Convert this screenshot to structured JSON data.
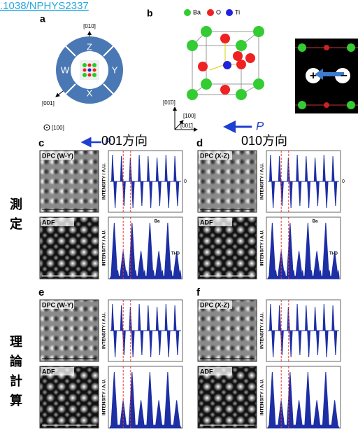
{
  "header": {
    "doi": ".1038/NPHYS2337"
  },
  "panel_a": {
    "label": "a",
    "axis_top": "[010]",
    "axis_left": "[001]",
    "axis_out": "[100]",
    "ring": [
      "Z",
      "Y",
      "X",
      "W"
    ],
    "polarization": "P"
  },
  "panel_b": {
    "label": "b",
    "legend": [
      "Ba",
      "O",
      "Ti"
    ],
    "axes": [
      "[01̄0]",
      "[100]",
      "[001̄]"
    ],
    "polarization": "P"
  },
  "inset": {
    "plus": "+",
    "minus": "−"
  },
  "columns": [
    "001方向",
    "010方向"
  ],
  "rows": [
    "測定",
    "理論計算"
  ],
  "panels": [
    {
      "label": "c",
      "dpc": "DPC (W-Y)",
      "adf": "ADF",
      "ylabel": "INTENSITY / A.U.",
      "zero": "0",
      "peaks": [
        "Ba",
        "Ti-O"
      ]
    },
    {
      "label": "d",
      "dpc": "DPC (X-Z)",
      "adf": "ADF",
      "ylabel": "INTENSITY / A.U.",
      "zero": "0",
      "peaks": [
        "Ba",
        "Ti-O"
      ]
    },
    {
      "label": "e",
      "dpc": "DPC (W-Y)",
      "adf": "ADF",
      "ylabel": "INTENSITY / A.U."
    },
    {
      "label": "f",
      "dpc": "DPC (X-Z)",
      "adf": "ADF",
      "ylabel": "INTENSITY / A.U."
    }
  ]
}
